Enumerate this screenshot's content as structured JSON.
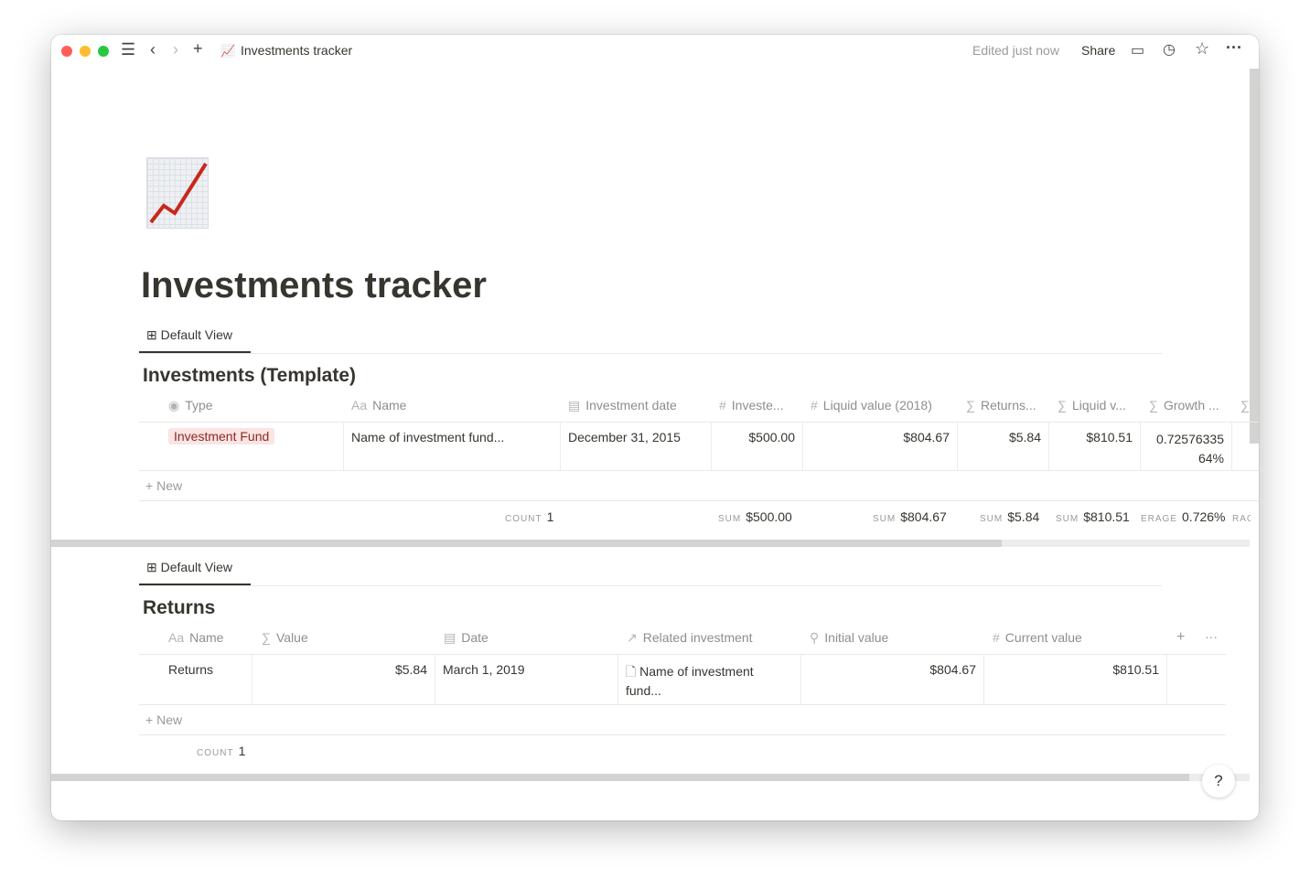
{
  "titlebar": {
    "page_title": "Investments tracker",
    "edited": "Edited just now",
    "share": "Share"
  },
  "page": {
    "title": "Investments tracker",
    "icon": "chart-increasing-icon"
  },
  "db1": {
    "view_tab": "Default View",
    "title": "Investments (Template)",
    "columns": [
      {
        "icon": "◉",
        "label": "Type"
      },
      {
        "icon": "Aa",
        "label": "Name"
      },
      {
        "icon": "▤",
        "label": "Investment date"
      },
      {
        "icon": "#",
        "label": "Investe..."
      },
      {
        "icon": "#",
        "label": "Liquid value (2018)"
      },
      {
        "icon": "∑",
        "label": "Returns..."
      },
      {
        "icon": "∑",
        "label": "Liquid v..."
      },
      {
        "icon": "∑",
        "label": "Growth ..."
      },
      {
        "icon": "∑",
        "label": ""
      }
    ],
    "row": {
      "type": "Investment Fund",
      "name": "Name of investment fund...",
      "date": "December 31, 2015",
      "invested": "$500.00",
      "liquid_2018": "$804.67",
      "returns": "$5.84",
      "liquid": "$810.51",
      "growth_1": "0.72576335",
      "growth_2": "64%"
    },
    "new_label": "New",
    "footer": {
      "count_label": "COUNT",
      "count": "1",
      "sum_label": "SUM",
      "invested": "$500.00",
      "liquid_2018": "$804.67",
      "returns": "$5.84",
      "liquid": "$810.51",
      "avg_label": "ERAGE",
      "growth": "0.726%",
      "cut_label": "RAG"
    }
  },
  "db2": {
    "view_tab": "Default View",
    "title": "Returns",
    "columns": [
      {
        "icon": "Aa",
        "label": "Name"
      },
      {
        "icon": "∑",
        "label": "Value"
      },
      {
        "icon": "▤",
        "label": "Date"
      },
      {
        "icon": "↗",
        "label": "Related investment"
      },
      {
        "icon": "⚲",
        "label": "Initial value"
      },
      {
        "icon": "#",
        "label": "Current value"
      }
    ],
    "row": {
      "name": "Returns",
      "value": "$5.84",
      "date": "March 1, 2019",
      "related_1": "Name of investment",
      "related_2": "fund...",
      "initial": "$804.67",
      "current": "$810.51"
    },
    "new_label": "New",
    "footer": {
      "count_label": "COUNT",
      "count": "1"
    }
  },
  "help": "?"
}
